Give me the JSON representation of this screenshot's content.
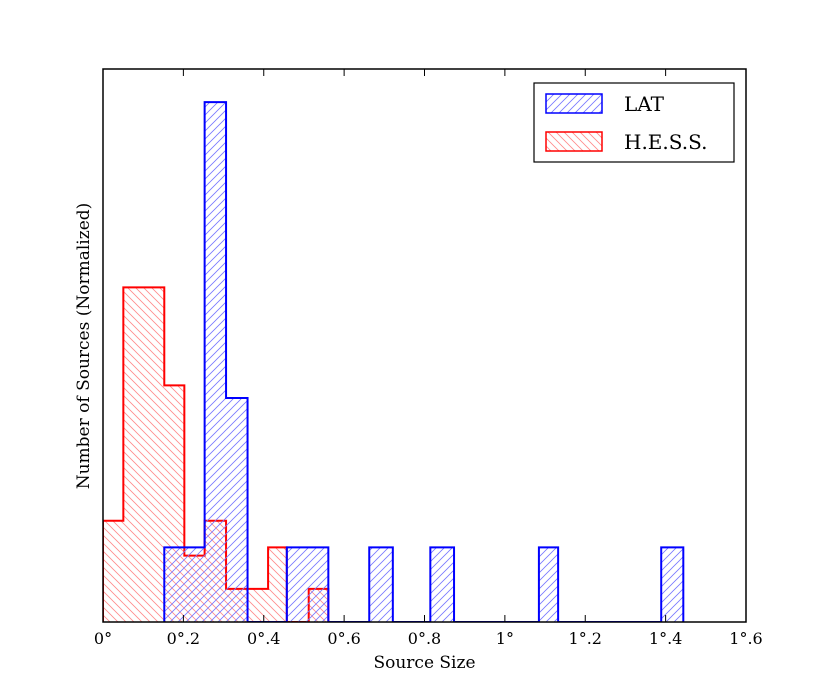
{
  "chart_data": {
    "type": "histogram",
    "title": "",
    "xlabel": "Source Size",
    "ylabel": "Number of Sources (Normalized)",
    "xlim": [
      0,
      1.6
    ],
    "ylim": [
      0,
      1.0
    ],
    "y_ticks_shown": false,
    "grid": false,
    "legend_position": "top-right",
    "x_ticks": [
      {
        "value": 0.0,
        "label": "0°"
      },
      {
        "value": 0.2,
        "label": "0°.2"
      },
      {
        "value": 0.4,
        "label": "0°.4"
      },
      {
        "value": 0.6,
        "label": "0°.6"
      },
      {
        "value": 0.8,
        "label": "0°.8"
      },
      {
        "value": 1.0,
        "label": "1°"
      },
      {
        "value": 1.2,
        "label": "1°.2"
      },
      {
        "value": 1.4,
        "label": "1°.4"
      },
      {
        "value": 1.6,
        "label": "1°.6"
      }
    ],
    "series": [
      {
        "name": "LAT",
        "color": "#0000ff",
        "hatch": "forward-diagonal",
        "bin_edges": [
          0.1525,
          0.2529,
          0.3062,
          0.3597,
          0.4574,
          0.5607,
          0.6625,
          0.7212,
          0.8145,
          0.8735,
          1.0847,
          1.1325,
          1.389,
          1.444
        ],
        "values": [
          0.135,
          0.94,
          0.405,
          0.0,
          0.135,
          0.0,
          0.135,
          0.0,
          0.135,
          0.0,
          0.135,
          0.0,
          0.135
        ]
      },
      {
        "name": "H.E.S.S.",
        "color": "#ff0000",
        "hatch": "back-diagonal",
        "bin_edges": [
          0.0,
          0.0506,
          0.1525,
          0.2024,
          0.2529,
          0.3062,
          0.3597,
          0.4108,
          0.4574,
          0.5119,
          0.5607
        ],
        "values": [
          0.183,
          0.605,
          0.428,
          0.12,
          0.183,
          0.06,
          0.06,
          0.135,
          0.0,
          0.06
        ]
      }
    ]
  }
}
